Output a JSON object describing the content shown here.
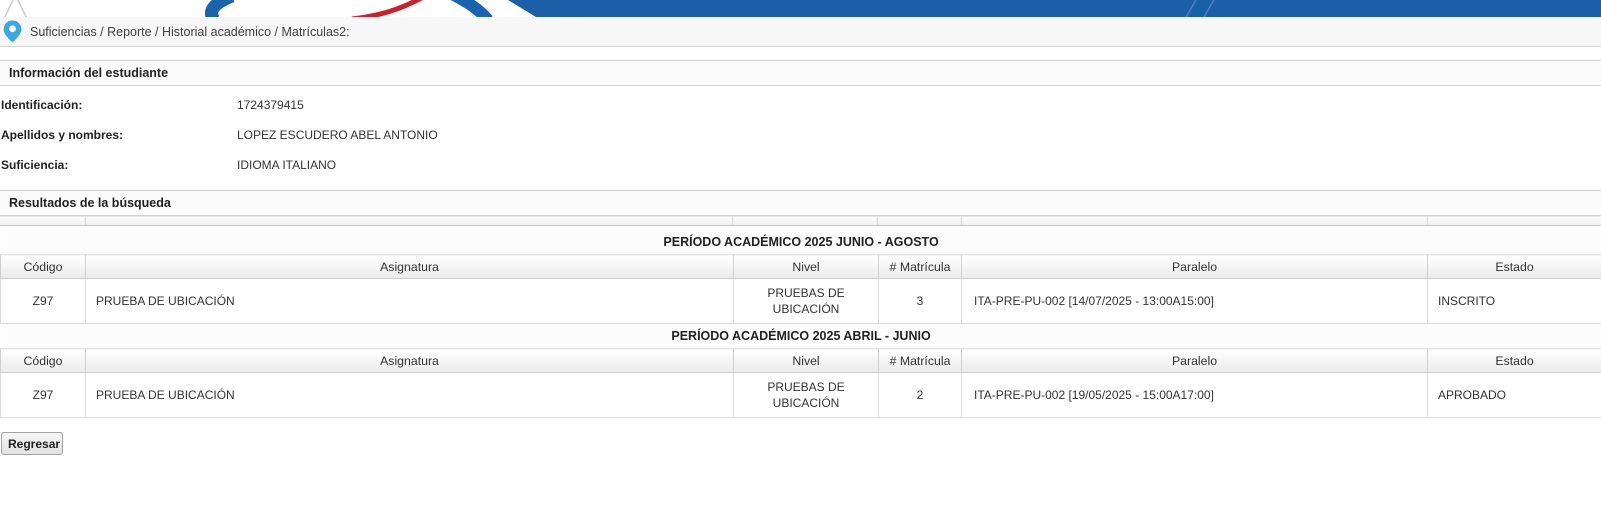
{
  "breadcrumb": {
    "icon": "location-pin-icon",
    "text": "Suficiencias / Reporte / Historial académico / Matrículas2:"
  },
  "student_info": {
    "title": "Información del estudiante",
    "fields": [
      {
        "label": "Identificación:",
        "value": "1724379415"
      },
      {
        "label": "Apellidos y nombres:",
        "value": "LOPEZ ESCUDERO ABEL ANTONIO"
      },
      {
        "label": "Suficiencia:",
        "value": "IDIOMA ITALIANO"
      }
    ]
  },
  "results": {
    "title": "Resultados de la búsqueda",
    "columns": [
      "Código",
      "Asignatura",
      "Nivel",
      "# Matrícula",
      "Paralelo",
      "Estado"
    ],
    "periods": [
      {
        "title": "PERÍODO ACADÉMICO 2025 JUNIO - AGOSTO",
        "rows": [
          {
            "codigo": "Z97",
            "asignatura": "PRUEBA DE UBICACIÓN",
            "nivel": "PRUEBAS DE UBICACIÓN",
            "matricula": "3",
            "paralelo": "ITA-PRE-PU-002 [14/07/2025 - 13:00A15:00]",
            "estado": "INSCRITO"
          }
        ]
      },
      {
        "title": "PERÍODO ACADÉMICO 2025 ABRIL - JUNIO",
        "rows": [
          {
            "codigo": "Z97",
            "asignatura": "PRUEBA DE UBICACIÓN",
            "nivel": "PRUEBAS DE UBICACIÓN",
            "matricula": "2",
            "paralelo": "ITA-PRE-PU-002 [19/05/2025 - 15:00A17:00]",
            "estado": "APROBADO"
          }
        ]
      }
    ]
  },
  "footer": {
    "back_button_label": "Regresar"
  },
  "colors": {
    "topbar_blue": "#1a5fa8",
    "pin_icon_blue": "#38a9e0",
    "logo_red": "#cc2128",
    "logo_blue": "#1a63ad"
  }
}
